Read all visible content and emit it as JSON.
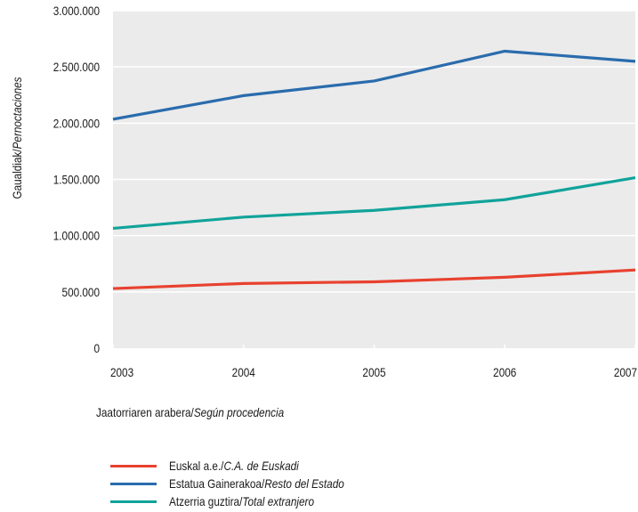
{
  "chart_data": {
    "type": "line",
    "x": [
      "2003",
      "2004",
      "2005",
      "2006",
      "2007"
    ],
    "ylabel": {
      "eu": "Gaualdiak/",
      "es": "Pernoctaciones"
    },
    "xlabel": {
      "eu": "Jaatorriaren arabera/",
      "es": "Según procedencia"
    },
    "ylim": [
      0,
      3000000
    ],
    "yticks": [
      0,
      500000,
      1000000,
      1500000,
      2000000,
      2500000,
      3000000
    ],
    "ytick_labels": [
      "0",
      "500.000",
      "1.000.000",
      "1.500.000",
      "2.000.000",
      "2.500.000",
      "3.000.000"
    ],
    "series": [
      {
        "key": "euskadi",
        "name_eu": "Euskal a.e./",
        "name_es": "C.A. de Euskadi",
        "color": "#e8412f",
        "values": [
          530000,
          575000,
          590000,
          630000,
          695000
        ]
      },
      {
        "key": "estado",
        "name_eu": "Estatua Gainerakoa/",
        "name_es": "Resto del Estado",
        "color": "#2a6cad",
        "values": [
          2035000,
          2245000,
          2375000,
          2640000,
          2550000
        ]
      },
      {
        "key": "extranjero",
        "name_eu": "Atzerria guztira/",
        "name_es": "Total extranjero",
        "color": "#11a39a",
        "values": [
          1065000,
          1165000,
          1225000,
          1320000,
          1515000
        ]
      }
    ],
    "grid": true,
    "background": "#ebebeb",
    "legend_position": "bottom-left"
  }
}
